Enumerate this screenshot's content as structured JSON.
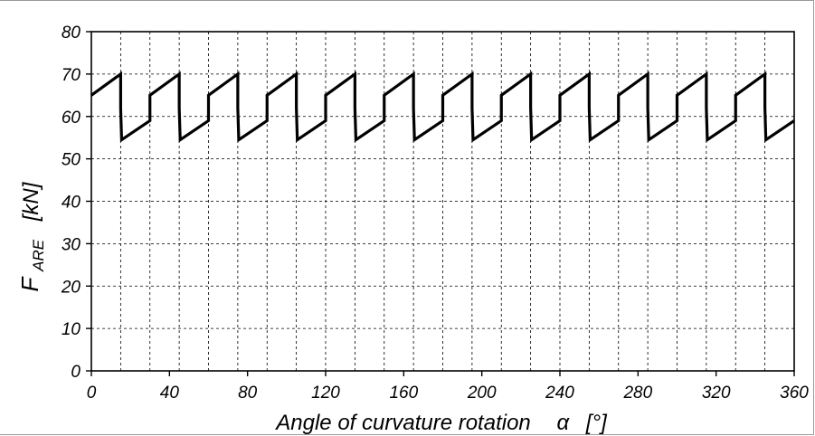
{
  "chart_data": {
    "type": "line",
    "title": "",
    "xlabel": "Angle of curvature rotation",
    "xlabel_symbol": "α",
    "xlabel_unit": "[°]",
    "ylabel": "F",
    "ylabel_sub": "ARE",
    "ylabel_unit": "[kN]",
    "xlim": [
      0,
      360
    ],
    "ylim": [
      0,
      80
    ],
    "xticks": [
      0,
      40,
      80,
      120,
      160,
      200,
      240,
      280,
      320,
      360
    ],
    "yticks": [
      0,
      10,
      20,
      30,
      40,
      50,
      60,
      70,
      80
    ],
    "x_minor_step": 15,
    "grid": true,
    "legend": "none",
    "line_color": "#000000",
    "series": [
      {
        "x": [
          0,
          15,
          15,
          15.5,
          30,
          30,
          45,
          45,
          45.5,
          60,
          60,
          75,
          75,
          75.5,
          90,
          90,
          105,
          105,
          105.5,
          120,
          120,
          135,
          135,
          135.5,
          150,
          150,
          165,
          165,
          165.5,
          180,
          180,
          195,
          195,
          195.5,
          210,
          210,
          225,
          225,
          225.5,
          240,
          240,
          255,
          255,
          255.5,
          270,
          270,
          285,
          285,
          285.5,
          300,
          300,
          315,
          315,
          315.5,
          330,
          330,
          345,
          345,
          345.5,
          360
        ],
        "y": [
          65,
          70,
          62,
          54.5,
          59,
          65,
          70,
          62,
          54.5,
          59,
          65,
          70,
          62,
          54.5,
          59,
          65,
          70,
          62,
          54.5,
          59,
          65,
          70,
          62,
          54.5,
          59,
          65,
          70,
          62,
          54.5,
          59,
          65,
          70,
          62,
          54.5,
          59,
          65,
          70,
          62,
          54.5,
          59,
          65,
          70,
          62,
          54.5,
          59,
          65,
          70,
          62,
          54.5,
          59,
          65,
          70,
          62,
          54.5,
          59,
          65,
          70,
          62,
          54.5,
          59
        ]
      }
    ]
  }
}
